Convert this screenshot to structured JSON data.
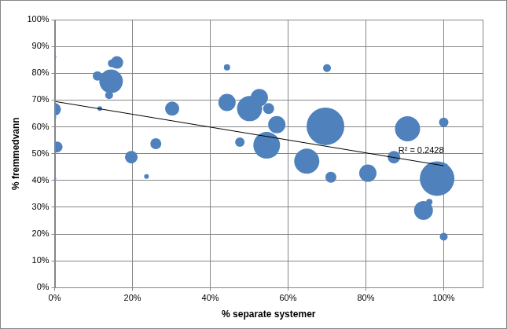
{
  "chart_data": {
    "type": "bubble",
    "x_label": "% separate systemer",
    "y_label": "% fremmedvann",
    "x": [
      0,
      0,
      0,
      0.6,
      0,
      11,
      11.6,
      14.7,
      16,
      14.5,
      14,
      19.7,
      23.6,
      26,
      30.2,
      44.3,
      44.3,
      47.6,
      52.6,
      50.1,
      55,
      57.1,
      54.5,
      64.8,
      70,
      71,
      69.6,
      80.5,
      87.2,
      90.7,
      94.8,
      96.3,
      100,
      100,
      98.3,
      100
    ],
    "values": [
      86.1,
      66.5,
      63.5,
      52.5,
      40.7,
      79,
      66.8,
      83.7,
      84,
      77,
      71.8,
      48.7,
      41.5,
      53.7,
      66.8,
      82.2,
      69.1,
      54.3,
      70.9,
      66.8,
      66.8,
      60.8,
      53.1,
      47.2,
      81.9,
      41.2,
      60.2,
      42.7,
      48.7,
      59.3,
      28.8,
      32,
      61.7,
      44.8,
      40.7,
      19
    ],
    "sizes": [
      2,
      8,
      2,
      7,
      2,
      6,
      3,
      5,
      8,
      15,
      5,
      8,
      3,
      7,
      9,
      4,
      11,
      6,
      11,
      16,
      7,
      11,
      17,
      16,
      5,
      7,
      24,
      11,
      8,
      16,
      12,
      4,
      6,
      6,
      22,
      5
    ],
    "color": "#4f81bd",
    "trendline": {
      "x": [
        0,
        100
      ],
      "values": [
        69.5,
        45.5
      ],
      "color": "#000000"
    },
    "annotations": [
      {
        "text": "R² = 0.2428"
      }
    ],
    "xlim": [
      0,
      110
    ],
    "xticks": [
      {
        "value": 0,
        "label": "0%"
      },
      {
        "value": 20,
        "label": "20%"
      },
      {
        "value": 40,
        "label": "40%"
      },
      {
        "value": 60,
        "label": "60%"
      },
      {
        "value": 80,
        "label": "80%"
      },
      {
        "value": 100,
        "label": "100%"
      }
    ],
    "ylim": [
      0,
      100
    ],
    "yticks": [
      {
        "value": 0,
        "label": "0%"
      },
      {
        "value": 10,
        "label": "10%"
      },
      {
        "value": 20,
        "label": "20%"
      },
      {
        "value": 30,
        "label": "30%"
      },
      {
        "value": 40,
        "label": "40%"
      },
      {
        "value": 50,
        "label": "50%"
      },
      {
        "value": 60,
        "label": "60%"
      },
      {
        "value": 70,
        "label": "70%"
      },
      {
        "value": 80,
        "label": "80%"
      },
      {
        "value": 90,
        "label": "90%"
      },
      {
        "value": 100,
        "label": "100%"
      }
    ],
    "grid": true
  }
}
